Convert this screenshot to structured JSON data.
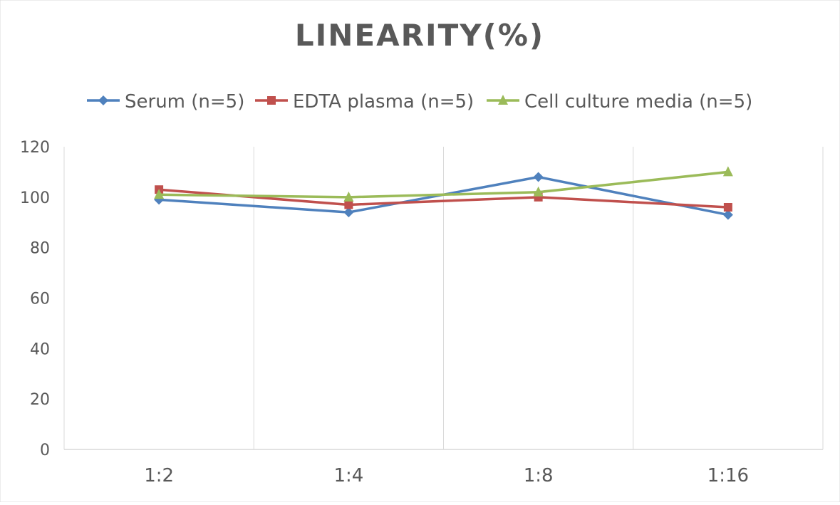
{
  "chart_data": {
    "type": "line",
    "title": "LINEARITY(%)",
    "xlabel": "",
    "ylabel": "",
    "categories": [
      "1:2",
      "1:4",
      "1:8",
      "1:16"
    ],
    "ylim": [
      0,
      120
    ],
    "yticks": [
      0,
      20,
      40,
      60,
      80,
      100,
      120
    ],
    "grid": "vertical",
    "legend_position": "top",
    "series": [
      {
        "name": "Serum (n=5)",
        "values": [
          99,
          94,
          108,
          93
        ],
        "color": "#4f81bd",
        "marker": "diamond"
      },
      {
        "name": "EDTA plasma (n=5)",
        "values": [
          103,
          97,
          100,
          96
        ],
        "color": "#c0504d",
        "marker": "square"
      },
      {
        "name": "Cell culture media (n=5)",
        "values": [
          101,
          100,
          102,
          110
        ],
        "color": "#9bbb59",
        "marker": "triangle"
      }
    ]
  }
}
